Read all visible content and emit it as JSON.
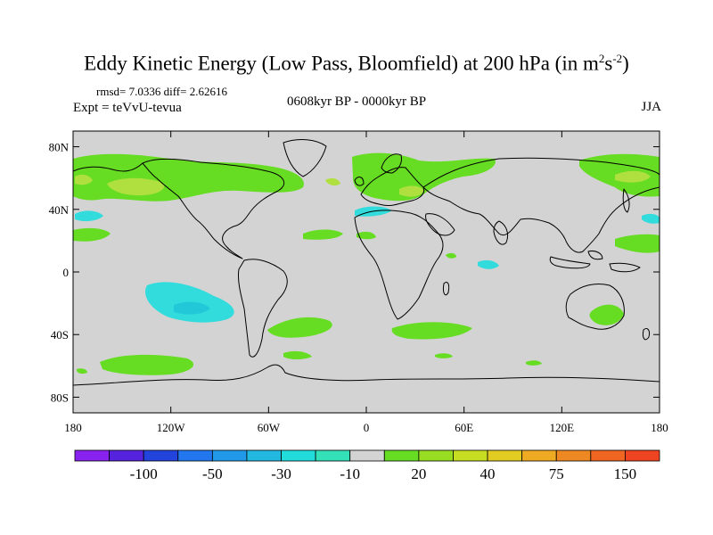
{
  "title_main": "Eddy Kinetic Energy (Low Pass, Bloomfield) at 200 hPa (in m",
  "title_sup1": "2",
  "title_mid": "s",
  "title_sup2": "-2",
  "title_end": ")",
  "stats": "rmsd= 7.0336 diff= 2.62616",
  "expt": "Expt = teVvU-tevua",
  "period": "0608kyr BP - 0000kyr BP",
  "season": "JJA",
  "lat_labels": [
    "80N",
    "40N",
    "0",
    "40S",
    "80S"
  ],
  "lat_values": [
    80,
    40,
    0,
    -40,
    -80
  ],
  "lon_labels": [
    "180",
    "120W",
    "60W",
    "0",
    "60E",
    "120E",
    "180"
  ],
  "lon_values": [
    -180,
    -120,
    -60,
    0,
    60,
    120,
    180
  ],
  "colors": {
    "background": "#d3d3d3",
    "green": "#66dd22",
    "yellow_green": "#b0e040",
    "cyan": "#33dcdc",
    "teal": "#22c8d8"
  },
  "colorbar": {
    "colors": [
      "#8822ee",
      "#5522dd",
      "#2244dd",
      "#2277ee",
      "#2299e8",
      "#22b8e0",
      "#22dcdc",
      "#33e0b8",
      "#d3d3d3",
      "#66dd22",
      "#99dd22",
      "#c6dd22",
      "#e2cc22",
      "#eeaa22",
      "#ee8822",
      "#ee6622",
      "#ee4422"
    ],
    "labels": [
      "-100",
      "-50",
      "-30",
      "-10",
      "20",
      "40",
      "75",
      "150"
    ],
    "label_boundary_index": [
      2,
      4,
      6,
      8,
      10,
      12,
      14,
      16
    ]
  }
}
